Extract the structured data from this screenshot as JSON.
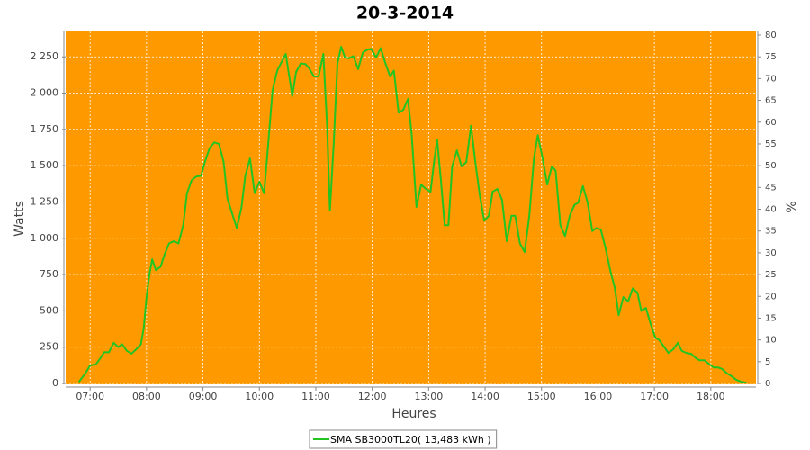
{
  "chart_data": {
    "type": "line",
    "title": "20-3-2014",
    "x_label": "Heures",
    "y_label": "Watts",
    "y2_label": "%",
    "x": [
      408,
      415,
      420,
      426,
      431,
      435,
      440,
      445,
      450,
      454,
      459,
      464,
      469,
      474,
      477,
      480,
      483,
      486,
      490,
      495,
      499,
      504,
      509,
      514,
      519,
      523,
      528,
      533,
      538,
      542,
      547,
      552,
      557,
      562,
      566,
      571,
      576,
      581,
      585,
      590,
      595,
      600,
      605,
      609,
      614,
      619,
      624,
      628,
      631,
      635,
      639,
      644,
      649,
      653,
      658,
      663,
      668,
      672,
      675,
      679,
      683,
      687,
      691,
      695,
      700,
      705,
      710,
      715,
      719,
      724,
      729,
      734,
      739,
      743,
      748,
      753,
      758,
      762,
      767,
      772,
      777,
      782,
      786,
      789,
      793,
      797,
      801,
      805,
      810,
      815,
      820,
      825,
      829,
      834,
      839,
      844,
      848,
      853,
      858,
      863,
      868,
      872,
      877,
      882,
      887,
      892,
      896,
      901,
      906,
      911,
      915,
      920,
      925,
      930,
      935,
      939,
      944,
      949,
      954,
      958,
      963,
      968,
      973,
      978,
      982,
      987,
      992,
      997,
      1002,
      1006,
      1011,
      1016,
      1021,
      1025,
      1030,
      1035,
      1040,
      1045,
      1049,
      1054,
      1059,
      1064,
      1068,
      1073,
      1078,
      1083,
      1088,
      1092,
      1097,
      1102,
      1107,
      1112,
      1118
    ],
    "series": [
      {
        "name": "SMA SB3000TL20( 13,483 kWh )",
        "color": "#22c422",
        "values": [
          10,
          70,
          125,
          130,
          175,
          215,
          215,
          280,
          250,
          270,
          225,
          205,
          235,
          270,
          380,
          595,
          750,
          855,
          780,
          805,
          885,
          965,
          980,
          965,
          1090,
          1310,
          1400,
          1425,
          1430,
          1525,
          1620,
          1660,
          1650,
          1525,
          1275,
          1170,
          1070,
          1215,
          1430,
          1550,
          1310,
          1390,
          1310,
          1620,
          2020,
          2155,
          2220,
          2270,
          2145,
          1980,
          2145,
          2205,
          2200,
          2170,
          2115,
          2115,
          2270,
          1775,
          1190,
          1650,
          2205,
          2320,
          2245,
          2240,
          2255,
          2165,
          2280,
          2300,
          2305,
          2245,
          2310,
          2205,
          2115,
          2155,
          1865,
          1885,
          1960,
          1710,
          1215,
          1370,
          1340,
          1320,
          1540,
          1680,
          1400,
          1090,
          1090,
          1495,
          1605,
          1495,
          1525,
          1775,
          1555,
          1310,
          1120,
          1155,
          1320,
          1340,
          1265,
          980,
          1155,
          1155,
          965,
          905,
          1155,
          1555,
          1710,
          1555,
          1370,
          1495,
          1465,
          1090,
          1015,
          1155,
          1230,
          1245,
          1360,
          1245,
          1050,
          1070,
          1060,
          935,
          780,
          655,
          470,
          595,
          565,
          655,
          625,
          500,
          520,
          410,
          315,
          300,
          255,
          210,
          235,
          280,
          225,
          210,
          205,
          175,
          160,
          160,
          135,
          110,
          110,
          100,
          70,
          50,
          25,
          12,
          5
        ]
      }
    ],
    "xlim": [
      394,
      1128
    ],
    "xticks": [
      {
        "value": 420,
        "label": "07:00"
      },
      {
        "value": 480,
        "label": "08:00"
      },
      {
        "value": 540,
        "label": "09:00"
      },
      {
        "value": 600,
        "label": "10:00"
      },
      {
        "value": 660,
        "label": "11:00"
      },
      {
        "value": 720,
        "label": "12:00"
      },
      {
        "value": 780,
        "label": "13:00"
      },
      {
        "value": 840,
        "label": "14:00"
      },
      {
        "value": 900,
        "label": "15:00"
      },
      {
        "value": 960,
        "label": "16:00"
      },
      {
        "value": 1020,
        "label": "17:00"
      },
      {
        "value": 1080,
        "label": "18:00"
      }
    ],
    "ylim": [
      0,
      2425
    ],
    "yticks": [
      0,
      250,
      500,
      750,
      {
        "value": 1000,
        "label": "1 000"
      },
      {
        "value": 1250,
        "label": "1 250"
      },
      {
        "value": 1500,
        "label": "1 500"
      },
      {
        "value": 1750,
        "label": "1 750"
      },
      {
        "value": 2000,
        "label": "2 000"
      },
      {
        "value": 2250,
        "label": "2 250"
      }
    ],
    "y2lim": [
      0,
      80.83
    ],
    "y2ticks": [
      0,
      5,
      10,
      15,
      20,
      25,
      30,
      35,
      40,
      45,
      50,
      55,
      60,
      65,
      70,
      75,
      80
    ],
    "grid": true,
    "plot_background": "#ff9900",
    "legend": "bottom"
  }
}
